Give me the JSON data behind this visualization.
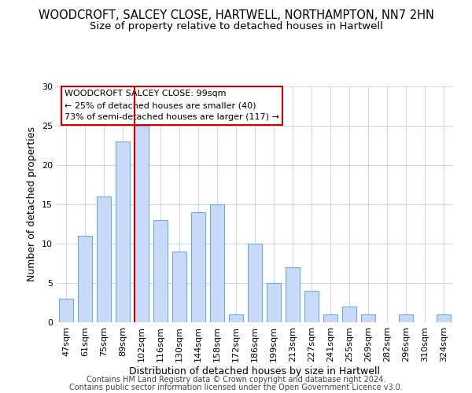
{
  "title1": "WOODCROFT, SALCEY CLOSE, HARTWELL, NORTHAMPTON, NN7 2HN",
  "title2": "Size of property relative to detached houses in Hartwell",
  "xlabel": "Distribution of detached houses by size in Hartwell",
  "ylabel": "Number of detached properties",
  "categories": [
    "47sqm",
    "61sqm",
    "75sqm",
    "89sqm",
    "102sqm",
    "116sqm",
    "130sqm",
    "144sqm",
    "158sqm",
    "172sqm",
    "186sqm",
    "199sqm",
    "213sqm",
    "227sqm",
    "241sqm",
    "255sqm",
    "269sqm",
    "282sqm",
    "296sqm",
    "310sqm",
    "324sqm"
  ],
  "values": [
    3,
    11,
    16,
    23,
    25,
    13,
    9,
    14,
    15,
    1,
    10,
    5,
    7,
    4,
    1,
    2,
    1,
    0,
    1,
    0,
    1
  ],
  "bar_color": "#c9daf8",
  "bar_edge_color": "#6fa8dc",
  "red_line_index": 4,
  "ylim": [
    0,
    30
  ],
  "yticks": [
    0,
    5,
    10,
    15,
    20,
    25,
    30
  ],
  "annotation_title": "WOODCROFT SALCEY CLOSE: 99sqm",
  "annotation_line1": "← 25% of detached houses are smaller (40)",
  "annotation_line2": "73% of semi-detached houses are larger (117) →",
  "annotation_box_color": "#ffffff",
  "annotation_box_edge_color": "#cc0000",
  "footer1": "Contains HM Land Registry data © Crown copyright and database right 2024.",
  "footer2": "Contains public sector information licensed under the Open Government Licence v3.0.",
  "background_color": "#ffffff",
  "grid_color": "#c8d4e8",
  "title1_fontsize": 10.5,
  "title2_fontsize": 9.5,
  "xlabel_fontsize": 9,
  "ylabel_fontsize": 9,
  "tick_fontsize": 8,
  "footer_fontsize": 7,
  "annot_fontsize": 8
}
